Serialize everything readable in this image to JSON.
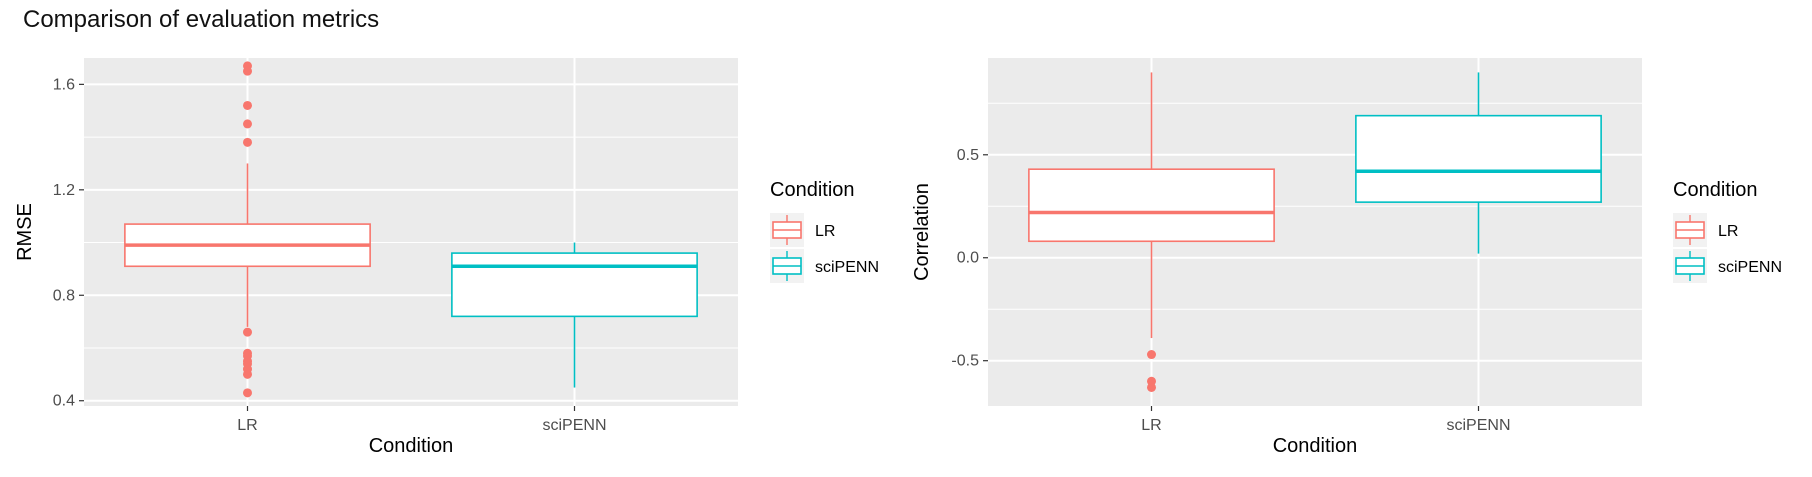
{
  "title": "Comparison of evaluation metrics",
  "chart_data": [
    {
      "type": "box",
      "xlabel": "Condition",
      "ylabel": "RMSE",
      "ylim": [
        0.38,
        1.7
      ],
      "yticks": [
        0.4,
        0.8,
        1.2,
        1.6
      ],
      "ytick_labels": [
        "0.4",
        "0.8",
        "1.2",
        "1.6"
      ],
      "categories": [
        "LR",
        "sciPENN"
      ],
      "grid": true,
      "legend": {
        "title": "Condition",
        "position": "right",
        "entries": [
          {
            "label": "LR",
            "color": "#F8766D"
          },
          {
            "label": "sciPENN",
            "color": "#00BFC4"
          }
        ]
      },
      "boxes": [
        {
          "category": "LR",
          "color": "#F8766D",
          "whisker_low": 0.68,
          "q1": 0.91,
          "median": 0.99,
          "q3": 1.07,
          "whisker_high": 1.3,
          "outliers": [
            1.67,
            1.65,
            1.52,
            1.45,
            1.38,
            0.66,
            0.58,
            0.57,
            0.55,
            0.54,
            0.52,
            0.5,
            0.43
          ]
        },
        {
          "category": "sciPENN",
          "color": "#00BFC4",
          "whisker_low": 0.45,
          "q1": 0.72,
          "median": 0.91,
          "q3": 0.96,
          "whisker_high": 1.0,
          "outliers": []
        }
      ]
    },
    {
      "type": "box",
      "xlabel": "Condition",
      "ylabel": "Correlation",
      "ylim": [
        -0.72,
        0.97
      ],
      "yticks": [
        -0.5,
        0.0,
        0.5
      ],
      "ytick_labels": [
        "-0.5",
        "0.0",
        "0.5"
      ],
      "categories": [
        "LR",
        "sciPENN"
      ],
      "grid": true,
      "legend": {
        "title": "Condition",
        "position": "right",
        "entries": [
          {
            "label": "LR",
            "color": "#F8766D"
          },
          {
            "label": "sciPENN",
            "color": "#00BFC4"
          }
        ]
      },
      "boxes": [
        {
          "category": "LR",
          "color": "#F8766D",
          "whisker_low": -0.39,
          "q1": 0.08,
          "median": 0.22,
          "q3": 0.43,
          "whisker_high": 0.9,
          "outliers": [
            -0.47,
            -0.6,
            -0.63
          ]
        },
        {
          "category": "sciPENN",
          "color": "#00BFC4",
          "whisker_low": 0.02,
          "q1": 0.27,
          "median": 0.42,
          "q3": 0.69,
          "whisker_high": 0.9,
          "outliers": []
        }
      ]
    }
  ]
}
